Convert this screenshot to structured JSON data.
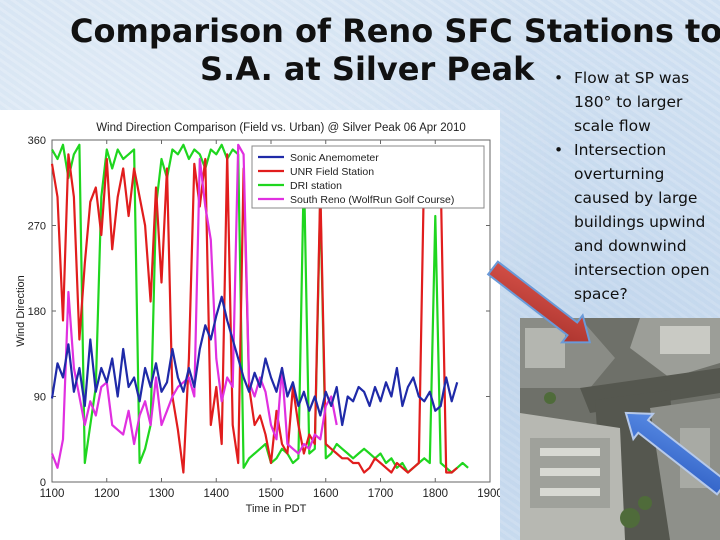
{
  "slide": {
    "title_line1": "Comparison of Reno SFC Stations to",
    "title_line2": "S.A. at Silver Peak",
    "bullets": [
      "Flow at SP was 180° to larger scale flow",
      "Intersection overturning caused by large buildings upwind and downwind intersection open space?"
    ]
  },
  "colors": {
    "sonic": "#1f2aa8",
    "unr": "#e11d1d",
    "dri": "#1fd61f",
    "south_reno": "#e030e0",
    "arrow_red": "#c8403a",
    "arrow_blue": "#3a6fd8"
  },
  "chart_data": {
    "type": "line",
    "title": "Wind Direction Comparison (Field vs. Urban) @ Silver Peak 06 Apr 2010",
    "xlabel": "Time in PDT",
    "ylabel": "Wind Direction",
    "xlim": [
      1100,
      1900
    ],
    "ylim": [
      0,
      360
    ],
    "xticks": [
      "1100",
      "1200",
      "1300",
      "1400",
      "1500",
      "1600",
      "1700",
      "1800",
      "1900"
    ],
    "yticks": [
      "0",
      "90",
      "180",
      "270",
      "360"
    ],
    "grid": false,
    "legend_position": "top-right",
    "series": [
      {
        "name": "Sonic Anemometer",
        "color": "#1f2aa8",
        "x": [
          1100,
          1110,
          1120,
          1130,
          1140,
          1150,
          1160,
          1170,
          1180,
          1190,
          1200,
          1210,
          1220,
          1230,
          1240,
          1250,
          1260,
          1270,
          1280,
          1290,
          1300,
          1310,
          1320,
          1330,
          1340,
          1350,
          1360,
          1370,
          1380,
          1390,
          1400,
          1410,
          1420,
          1430,
          1440,
          1450,
          1460,
          1470,
          1480,
          1490,
          1500,
          1510,
          1520,
          1530,
          1540,
          1550,
          1560,
          1570,
          1580,
          1590,
          1600,
          1610,
          1620,
          1630,
          1640,
          1650,
          1660,
          1670,
          1680,
          1690,
          1700,
          1710,
          1720,
          1730,
          1740,
          1750,
          1760,
          1770,
          1780,
          1790,
          1800,
          1810,
          1820,
          1830,
          1840
        ],
        "y": [
          88,
          125,
          110,
          145,
          95,
          120,
          80,
          150,
          95,
          120,
          105,
          130,
          90,
          140,
          100,
          110,
          85,
          120,
          100,
          125,
          95,
          105,
          140,
          110,
          95,
          120,
          100,
          140,
          165,
          150,
          175,
          195,
          170,
          150,
          130,
          110,
          95,
          115,
          100,
          130,
          110,
          95,
          120,
          90,
          105,
          80,
          95,
          75,
          90,
          70,
          95,
          80,
          100,
          60,
          90,
          85,
          100,
          95,
          80,
          100,
          85,
          105,
          90,
          120,
          80,
          100,
          110,
          90,
          85,
          95,
          75,
          80,
          110,
          85,
          105
        ]
      },
      {
        "name": "UNR Field Station",
        "color": "#e11d1d",
        "x": [
          1100,
          1110,
          1120,
          1130,
          1140,
          1150,
          1160,
          1170,
          1180,
          1190,
          1200,
          1210,
          1220,
          1230,
          1240,
          1250,
          1260,
          1270,
          1280,
          1290,
          1300,
          1310,
          1320,
          1330,
          1340,
          1350,
          1360,
          1370,
          1380,
          1390,
          1400,
          1410,
          1420,
          1430,
          1440,
          1450,
          1460,
          1470,
          1480,
          1490,
          1500,
          1510,
          1520,
          1530,
          1540,
          1550,
          1560,
          1570,
          1580,
          1590,
          1600,
          1610,
          1620,
          1630,
          1640,
          1650,
          1660,
          1670,
          1680,
          1690,
          1700,
          1710,
          1720,
          1730,
          1740,
          1750,
          1760,
          1770,
          1780,
          1790,
          1800,
          1810,
          1820,
          1830,
          1840
        ],
        "y": [
          335,
          300,
          170,
          345,
          300,
          150,
          230,
          295,
          310,
          260,
          340,
          245,
          300,
          330,
          280,
          330,
          300,
          270,
          190,
          310,
          210,
          330,
          90,
          55,
          10,
          130,
          335,
          290,
          340,
          60,
          100,
          40,
          345,
          60,
          20,
          330,
          100,
          60,
          70,
          50,
          20,
          75,
          40,
          30,
          100,
          60,
          30,
          50,
          40,
          310,
          40,
          35,
          30,
          25,
          25,
          20,
          20,
          10,
          15,
          25,
          20,
          15,
          10,
          20,
          15,
          10,
          15,
          20,
          340,
          330,
          300,
          320,
          10,
          10,
          15
        ]
      },
      {
        "name": "DRI station",
        "color": "#1fd61f",
        "x": [
          1100,
          1110,
          1120,
          1130,
          1140,
          1150,
          1160,
          1170,
          1180,
          1190,
          1200,
          1210,
          1220,
          1230,
          1240,
          1250,
          1260,
          1270,
          1280,
          1290,
          1300,
          1310,
          1320,
          1330,
          1340,
          1350,
          1360,
          1370,
          1380,
          1390,
          1400,
          1410,
          1420,
          1430,
          1440,
          1450,
          1460,
          1470,
          1480,
          1490,
          1500,
          1510,
          1520,
          1530,
          1540,
          1550,
          1560,
          1570,
          1580,
          1590,
          1600,
          1610,
          1620,
          1630,
          1640,
          1650,
          1660,
          1670,
          1680,
          1690,
          1700,
          1710,
          1720,
          1730,
          1740,
          1750,
          1760,
          1770,
          1780,
          1790,
          1800,
          1810,
          1820,
          1830,
          1840,
          1850,
          1860
        ],
        "y": [
          350,
          340,
          355,
          320,
          345,
          355,
          20,
          60,
          100,
          300,
          350,
          330,
          350,
          340,
          345,
          350,
          20,
          35,
          60,
          290,
          340,
          320,
          350,
          345,
          355,
          340,
          350,
          345,
          330,
          350,
          345,
          355,
          340,
          350,
          345,
          15,
          25,
          30,
          35,
          40,
          20,
          25,
          35,
          30,
          20,
          25,
          330,
          30,
          35,
          300,
          25,
          30,
          40,
          35,
          30,
          25,
          30,
          35,
          30,
          25,
          30,
          20,
          25,
          15,
          20,
          10,
          15,
          20,
          25,
          20,
          280,
          20,
          15,
          10,
          15,
          20,
          15
        ]
      },
      {
        "name": "South Reno (WolfRun Golf Course)",
        "color": "#e030e0",
        "x": [
          1100,
          1110,
          1120,
          1130,
          1140,
          1150,
          1160,
          1170,
          1180,
          1190,
          1200,
          1210,
          1220,
          1230,
          1240,
          1250,
          1260,
          1270,
          1280,
          1290,
          1300,
          1310,
          1320,
          1330,
          1340,
          1350,
          1360,
          1370,
          1380,
          1390,
          1400,
          1410,
          1420,
          1430,
          1440,
          1450,
          1460,
          1470,
          1480,
          1490,
          1500,
          1510,
          1520,
          1530,
          1540,
          1550,
          1560,
          1570,
          1580,
          1590,
          1600,
          1610,
          1620
        ],
        "y": [
          30,
          15,
          45,
          200,
          120,
          90,
          60,
          85,
          70,
          100,
          105,
          60,
          55,
          50,
          75,
          40,
          70,
          85,
          60,
          110,
          60,
          75,
          90,
          100,
          105,
          110,
          90,
          340,
          290,
          255,
          130,
          85,
          110,
          100,
          355,
          345,
          105,
          90,
          110,
          95,
          60,
          45,
          120,
          40,
          35,
          30,
          40,
          35,
          50,
          45,
          80,
          90,
          60
        ]
      }
    ]
  }
}
